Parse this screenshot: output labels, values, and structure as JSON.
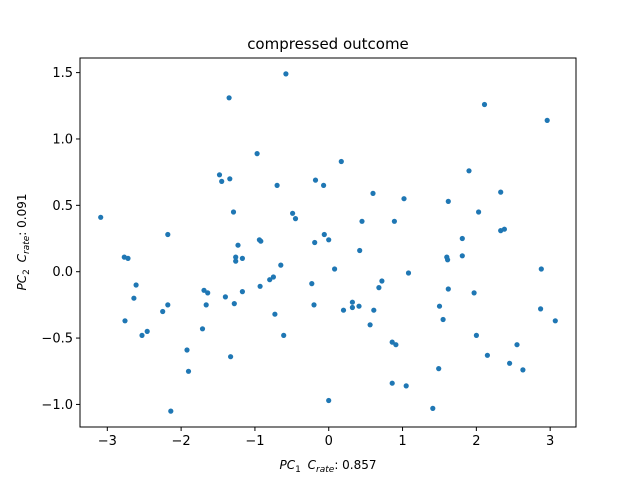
{
  "chart_data": {
    "type": "scatter",
    "title": "compressed outcome",
    "xlabel": {
      "pc": "PC",
      "sub": "1",
      "c": "C",
      "csub": "rate",
      "suffix": ":  0.857"
    },
    "ylabel": {
      "pc": "PC",
      "sub": "2",
      "c": "C",
      "csub": "rate",
      "suffix": ":  0.091"
    },
    "xlim": [
      -3.37,
      3.35
    ],
    "ylim": [
      -1.17,
      1.61
    ],
    "xticks": [
      -3,
      -2,
      -1,
      0,
      1,
      2,
      3
    ],
    "xtick_labels": [
      "−3",
      "−2",
      "−1",
      "0",
      "1",
      "2",
      "3"
    ],
    "yticks": [
      -1.0,
      -0.5,
      0.0,
      0.5,
      1.0,
      1.5
    ],
    "ytick_labels": [
      "−1.0",
      "−0.5",
      "0.0",
      "0.5",
      "1.0",
      "1.5"
    ],
    "grid": false,
    "marker_color": "#1f77b4",
    "points": [
      [
        -3.09,
        0.41
      ],
      [
        -2.77,
        0.11
      ],
      [
        -2.72,
        0.1
      ],
      [
        -2.76,
        -0.37
      ],
      [
        -2.64,
        -0.2
      ],
      [
        -2.61,
        -0.1
      ],
      [
        -2.53,
        -0.48
      ],
      [
        -2.46,
        -0.45
      ],
      [
        -2.25,
        -0.3
      ],
      [
        -2.18,
        0.28
      ],
      [
        -2.18,
        -0.25
      ],
      [
        -2.14,
        -1.05
      ],
      [
        -1.92,
        -0.59
      ],
      [
        -1.9,
        -0.75
      ],
      [
        -1.69,
        -0.14
      ],
      [
        -1.71,
        -0.43
      ],
      [
        -1.66,
        -0.25
      ],
      [
        -1.64,
        -0.16
      ],
      [
        -1.48,
        0.73
      ],
      [
        -1.45,
        0.68
      ],
      [
        -1.4,
        -0.19
      ],
      [
        -1.35,
        1.31
      ],
      [
        -1.34,
        0.7
      ],
      [
        -1.33,
        -0.64
      ],
      [
        -1.29,
        0.45
      ],
      [
        -1.28,
        -0.24
      ],
      [
        -1.26,
        0.08
      ],
      [
        -1.26,
        0.11
      ],
      [
        -1.23,
        0.2
      ],
      [
        -1.17,
        -0.15
      ],
      [
        -1.17,
        0.1
      ],
      [
        -0.97,
        0.89
      ],
      [
        -0.94,
        0.24
      ],
      [
        -0.92,
        0.23
      ],
      [
        -0.93,
        -0.11
      ],
      [
        -0.8,
        -0.06
      ],
      [
        -0.75,
        -0.04
      ],
      [
        -0.73,
        -0.32
      ],
      [
        -0.7,
        0.65
      ],
      [
        -0.65,
        0.05
      ],
      [
        -0.61,
        -0.48
      ],
      [
        -0.58,
        1.49
      ],
      [
        -0.49,
        0.44
      ],
      [
        -0.45,
        0.4
      ],
      [
        -0.23,
        -0.09
      ],
      [
        -0.19,
        0.22
      ],
      [
        -0.18,
        0.69
      ],
      [
        -0.2,
        -0.25
      ],
      [
        -0.07,
        0.65
      ],
      [
        -0.06,
        0.28
      ],
      [
        0.0,
        0.24
      ],
      [
        0.0,
        -0.97
      ],
      [
        0.08,
        0.02
      ],
      [
        0.17,
        0.83
      ],
      [
        0.2,
        -0.29
      ],
      [
        0.32,
        -0.23
      ],
      [
        0.32,
        -0.27
      ],
      [
        0.41,
        -0.26
      ],
      [
        0.42,
        0.16
      ],
      [
        0.45,
        0.38
      ],
      [
        0.56,
        -0.4
      ],
      [
        0.6,
        0.59
      ],
      [
        0.61,
        -0.29
      ],
      [
        0.68,
        -0.12
      ],
      [
        0.72,
        -0.07
      ],
      [
        0.86,
        -0.84
      ],
      [
        0.86,
        -0.53
      ],
      [
        0.89,
        0.38
      ],
      [
        0.91,
        -0.55
      ],
      [
        1.02,
        0.55
      ],
      [
        1.05,
        -0.86
      ],
      [
        1.08,
        -0.01
      ],
      [
        1.41,
        -1.03
      ],
      [
        1.49,
        -0.73
      ],
      [
        1.5,
        -0.26
      ],
      [
        1.55,
        -0.36
      ],
      [
        1.6,
        0.11
      ],
      [
        1.61,
        0.09
      ],
      [
        1.62,
        0.53
      ],
      [
        1.62,
        -0.13
      ],
      [
        1.81,
        0.12
      ],
      [
        1.81,
        0.25
      ],
      [
        1.9,
        0.76
      ],
      [
        1.97,
        -0.16
      ],
      [
        2.0,
        -0.48
      ],
      [
        2.03,
        0.45
      ],
      [
        2.11,
        1.26
      ],
      [
        2.15,
        -0.63
      ],
      [
        2.33,
        0.6
      ],
      [
        2.33,
        0.31
      ],
      [
        2.38,
        0.32
      ],
      [
        2.45,
        -0.69
      ],
      [
        2.55,
        -0.55
      ],
      [
        2.63,
        -0.74
      ],
      [
        2.87,
        -0.28
      ],
      [
        2.88,
        0.02
      ],
      [
        2.96,
        1.14
      ],
      [
        3.07,
        -0.37
      ]
    ]
  }
}
